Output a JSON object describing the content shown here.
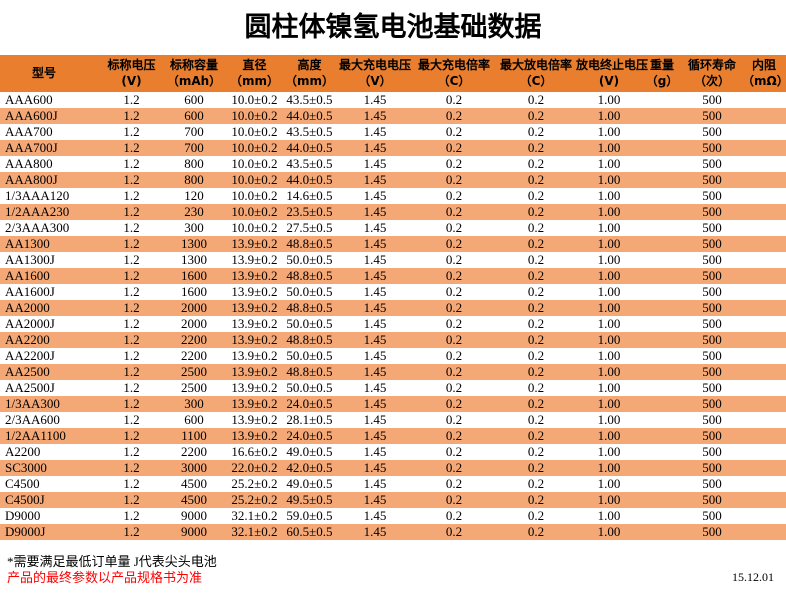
{
  "title": "圆柱体镍氢电池基础数据",
  "colors": {
    "header_bg": "#E97E2E",
    "stripe_bg": "#F4A876",
    "note_red": "#FF0000",
    "text": "#000000",
    "background": "#FFFFFF"
  },
  "table": {
    "column_keys": [
      "model",
      "nominal_voltage",
      "nominal_capacity",
      "diameter",
      "height",
      "max_charge_voltage",
      "max_charge_rate",
      "max_discharge_rate",
      "discharge_cutoff_voltage",
      "weight",
      "cycle_life",
      "internal_resistance"
    ],
    "columns": [
      {
        "line1": "型号",
        "line2": ""
      },
      {
        "line1": "标称电压",
        "line2": "(V)"
      },
      {
        "line1": "标称容量",
        "line2": "（mAh）"
      },
      {
        "line1": "直径",
        "line2": "（mm）"
      },
      {
        "line1": "高度",
        "line2": "（mm）"
      },
      {
        "line1": "最大充电电压",
        "line2": "（V）"
      },
      {
        "line1": "最大充电倍率",
        "line2": "（C）"
      },
      {
        "line1": "最大放电倍率",
        "line2": "（C）"
      },
      {
        "line1": "放电终止电压",
        "line2": "(V)"
      },
      {
        "line1": "重量",
        "line2": "（g）"
      },
      {
        "line1": "循环寿命",
        "line2": "（次）"
      },
      {
        "line1": "内阻",
        "line2": "（mΩ）"
      }
    ],
    "rows": [
      [
        "AAA600",
        "1.2",
        "600",
        "10.0±0.2",
        "43.5±0.5",
        "1.45",
        "0.2",
        "0.2",
        "1.00",
        "",
        "500",
        ""
      ],
      [
        "AAA600J",
        "1.2",
        "600",
        "10.0±0.2",
        "44.0±0.5",
        "1.45",
        "0.2",
        "0.2",
        "1.00",
        "",
        "500",
        ""
      ],
      [
        "AAA700",
        "1.2",
        "700",
        "10.0±0.2",
        "43.5±0.5",
        "1.45",
        "0.2",
        "0.2",
        "1.00",
        "",
        "500",
        ""
      ],
      [
        "AAA700J",
        "1.2",
        "700",
        "10.0±0.2",
        "44.0±0.5",
        "1.45",
        "0.2",
        "0.2",
        "1.00",
        "",
        "500",
        ""
      ],
      [
        "AAA800",
        "1.2",
        "800",
        "10.0±0.2",
        "43.5±0.5",
        "1.45",
        "0.2",
        "0.2",
        "1.00",
        "",
        "500",
        ""
      ],
      [
        "AAA800J",
        "1.2",
        "800",
        "10.0±0.2",
        "44.0±0.5",
        "1.45",
        "0.2",
        "0.2",
        "1.00",
        "",
        "500",
        ""
      ],
      [
        "1/3AAA120",
        "1.2",
        "120",
        "10.0±0.2",
        "14.6±0.5",
        "1.45",
        "0.2",
        "0.2",
        "1.00",
        "",
        "500",
        ""
      ],
      [
        "1/2AAA230",
        "1.2",
        "230",
        "10.0±0.2",
        "23.5±0.5",
        "1.45",
        "0.2",
        "0.2",
        "1.00",
        "",
        "500",
        ""
      ],
      [
        "2/3AAA300",
        "1.2",
        "300",
        "10.0±0.2",
        "27.5±0.5",
        "1.45",
        "0.2",
        "0.2",
        "1.00",
        "",
        "500",
        ""
      ],
      [
        "AA1300",
        "1.2",
        "1300",
        "13.9±0.2",
        "48.8±0.5",
        "1.45",
        "0.2",
        "0.2",
        "1.00",
        "",
        "500",
        ""
      ],
      [
        "AA1300J",
        "1.2",
        "1300",
        "13.9±0.2",
        "50.0±0.5",
        "1.45",
        "0.2",
        "0.2",
        "1.00",
        "",
        "500",
        ""
      ],
      [
        "AA1600",
        "1.2",
        "1600",
        "13.9±0.2",
        "48.8±0.5",
        "1.45",
        "0.2",
        "0.2",
        "1.00",
        "",
        "500",
        ""
      ],
      [
        "AA1600J",
        "1.2",
        "1600",
        "13.9±0.2",
        "50.0±0.5",
        "1.45",
        "0.2",
        "0.2",
        "1.00",
        "",
        "500",
        ""
      ],
      [
        "AA2000",
        "1.2",
        "2000",
        "13.9±0.2",
        "48.8±0.5",
        "1.45",
        "0.2",
        "0.2",
        "1.00",
        "",
        "500",
        ""
      ],
      [
        "AA2000J",
        "1.2",
        "2000",
        "13.9±0.2",
        "50.0±0.5",
        "1.45",
        "0.2",
        "0.2",
        "1.00",
        "",
        "500",
        ""
      ],
      [
        "AA2200",
        "1.2",
        "2200",
        "13.9±0.2",
        "48.8±0.5",
        "1.45",
        "0.2",
        "0.2",
        "1.00",
        "",
        "500",
        ""
      ],
      [
        "AA2200J",
        "1.2",
        "2200",
        "13.9±0.2",
        "50.0±0.5",
        "1.45",
        "0.2",
        "0.2",
        "1.00",
        "",
        "500",
        ""
      ],
      [
        "AA2500",
        "1.2",
        "2500",
        "13.9±0.2",
        "48.8±0.5",
        "1.45",
        "0.2",
        "0.2",
        "1.00",
        "",
        "500",
        ""
      ],
      [
        "AA2500J",
        "1.2",
        "2500",
        "13.9±0.2",
        "50.0±0.5",
        "1.45",
        "0.2",
        "0.2",
        "1.00",
        "",
        "500",
        ""
      ],
      [
        "1/3AA300",
        "1.2",
        "300",
        "13.9±0.2",
        "24.0±0.5",
        "1.45",
        "0.2",
        "0.2",
        "1.00",
        "",
        "500",
        ""
      ],
      [
        "2/3AA600",
        "1.2",
        "600",
        "13.9±0.2",
        "28.1±0.5",
        "1.45",
        "0.2",
        "0.2",
        "1.00",
        "",
        "500",
        ""
      ],
      [
        "1/2AA1100",
        "1.2",
        "1100",
        "13.9±0.2",
        "24.0±0.5",
        "1.45",
        "0.2",
        "0.2",
        "1.00",
        "",
        "500",
        ""
      ],
      [
        "A2200",
        "1.2",
        "2200",
        "16.6±0.2",
        "49.0±0.5",
        "1.45",
        "0.2",
        "0.2",
        "1.00",
        "",
        "500",
        ""
      ],
      [
        "SC3000",
        "1.2",
        "3000",
        "22.0±0.2",
        "42.0±0.5",
        "1.45",
        "0.2",
        "0.2",
        "1.00",
        "",
        "500",
        ""
      ],
      [
        "C4500",
        "1.2",
        "4500",
        "25.2±0.2",
        "49.0±0.5",
        "1.45",
        "0.2",
        "0.2",
        "1.00",
        "",
        "500",
        ""
      ],
      [
        "C4500J",
        "1.2",
        "4500",
        "25.2±0.2",
        "49.5±0.5",
        "1.45",
        "0.2",
        "0.2",
        "1.00",
        "",
        "500",
        ""
      ],
      [
        "D9000",
        "1.2",
        "9000",
        "32.1±0.2",
        "59.0±0.5",
        "1.45",
        "0.2",
        "0.2",
        "1.00",
        "",
        "500",
        ""
      ],
      [
        "D9000J",
        "1.2",
        "9000",
        "32.1±0.2",
        "60.5±0.5",
        "1.45",
        "0.2",
        "0.2",
        "1.00",
        "",
        "500",
        ""
      ]
    ]
  },
  "footer": {
    "note1": "*需要满足最低订单量 J代表尖头电池",
    "note2": "产品的最终参数以产品规格书为准",
    "date": "15.12.01"
  }
}
